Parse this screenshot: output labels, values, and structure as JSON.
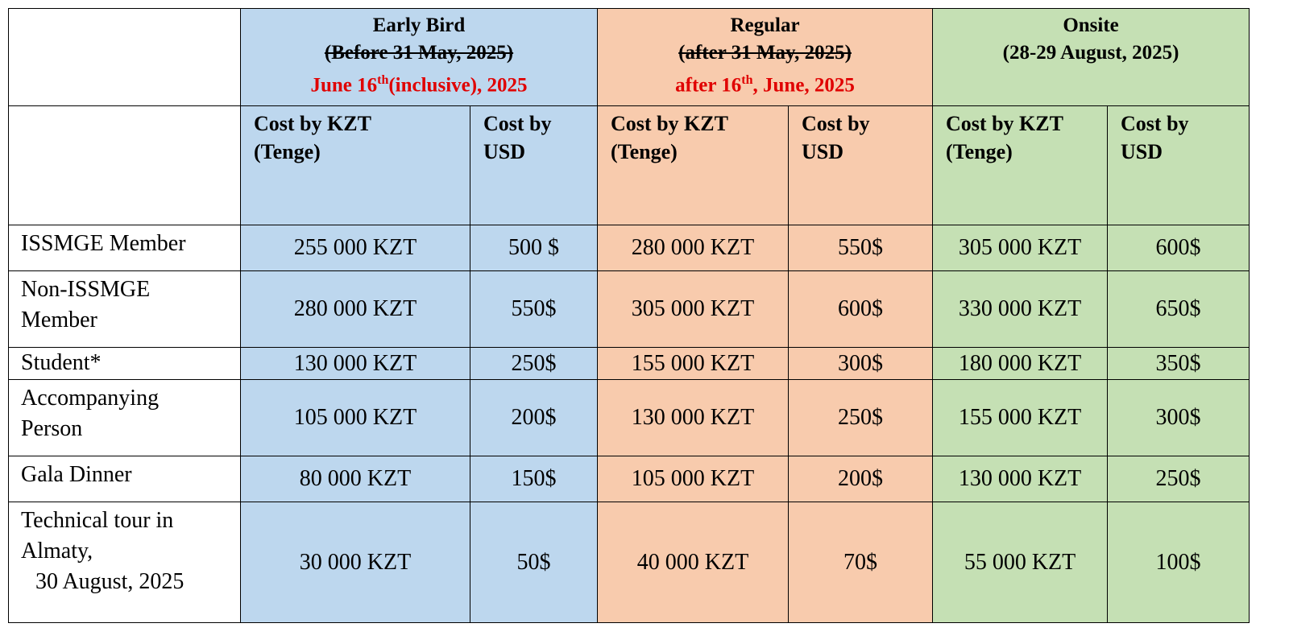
{
  "table": {
    "groups": [
      {
        "title": "Early Bird",
        "old_date": "(Before 31 May, 2025)",
        "new_date": [
          "June 16",
          "th",
          "(inclusive), 2025"
        ],
        "color": "#bdd7ee"
      },
      {
        "title": "Regular",
        "old_date": "(after 31 May, 2025)",
        "new_date": [
          "after 16",
          "th",
          ", June, 2025"
        ],
        "color": "#f8cbad"
      },
      {
        "title": "Onsite",
        "date": "(28-29 August, 2025)",
        "color": "#c5e0b4"
      }
    ],
    "subheaders": [
      [
        "Cost by KZT",
        "(Tenge)"
      ],
      [
        "Cost by",
        "USD"
      ],
      [
        "Cost by KZT",
        "(Tenge)"
      ],
      [
        "Cost by",
        "USD"
      ],
      [
        "Cost by KZT",
        "(Tenge)"
      ],
      [
        "Cost by",
        "USD"
      ]
    ],
    "rows": [
      {
        "label": [
          "ISSMGE Member"
        ],
        "cells": [
          "255 000 KZT",
          "500 $",
          "280 000 KZT",
          "550$",
          "305 000 KZT",
          "600$"
        ]
      },
      {
        "label": [
          "Non-ISSMGE",
          "Member"
        ],
        "cells": [
          "280 000 KZT",
          "550$",
          "305 000 KZT",
          "600$",
          "330 000 KZT",
          "650$"
        ]
      },
      {
        "label": [
          "Student*"
        ],
        "cells": [
          "130 000 KZT",
          "250$",
          "155 000 KZT",
          "300$",
          "180 000 KZT",
          "350$"
        ]
      },
      {
        "label": [
          "Accompanying",
          "Person"
        ],
        "cells": [
          "105 000 KZT",
          "200$",
          "130 000 KZT",
          "250$",
          "155 000 KZT",
          "300$"
        ]
      },
      {
        "label": [
          "Gala Dinner"
        ],
        "cells": [
          "80 000 KZT",
          "150$",
          "105 000 KZT",
          "200$",
          "130 000 KZT",
          "250$"
        ]
      },
      {
        "label": [
          "Technical tour in",
          "Almaty,",
          "30 August, 2025"
        ],
        "cells": [
          "30 000 KZT",
          "50$",
          "40 000 KZT",
          "70$",
          "55 000 KZT",
          "100$"
        ]
      }
    ]
  }
}
